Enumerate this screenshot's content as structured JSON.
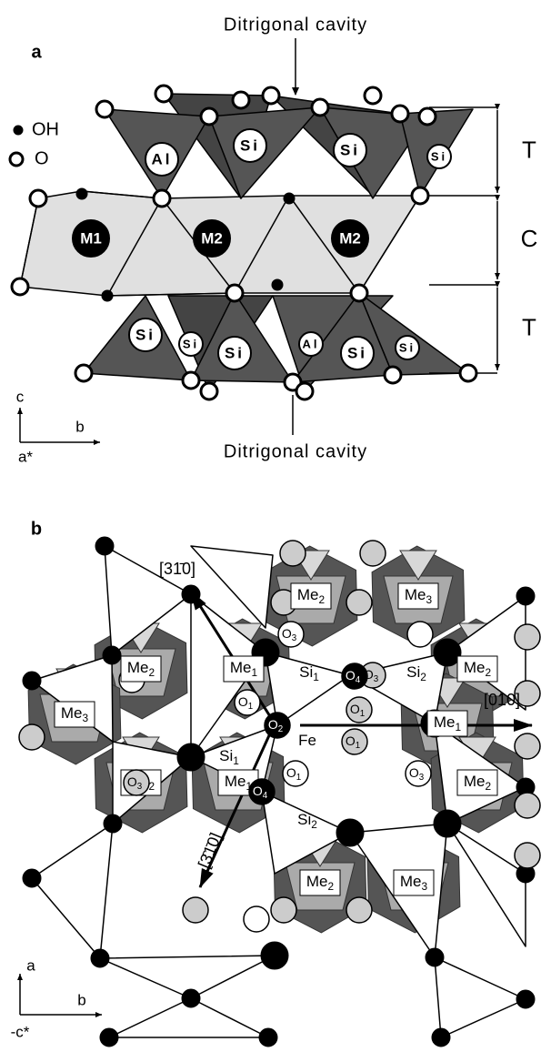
{
  "panel_a": {
    "label": "a",
    "top_caption": "Ditrigonal cavity",
    "bottom_caption": "Ditrigonal cavity",
    "legend": [
      "OH",
      "O"
    ],
    "layers": [
      "T",
      "C",
      "T"
    ],
    "sites": [
      "Al",
      "Si",
      "Si",
      "Si",
      "M1",
      "M2",
      "M2",
      "Si",
      "Si",
      "Si",
      "Al",
      "Si",
      "Si"
    ],
    "axes": {
      "vertical": "c",
      "horizontal": "b",
      "depth": "a*"
    }
  },
  "panel_b": {
    "label": "b",
    "directions": [
      "[31̄0]",
      "[010]",
      "[3̄1̄0]"
    ],
    "sites": [
      {
        "base": "Me",
        "sub": "2"
      },
      {
        "base": "Me",
        "sub": "3"
      },
      {
        "base": "Me",
        "sub": "2"
      },
      {
        "base": "Me",
        "sub": "1"
      },
      {
        "base": "Me",
        "sub": "2"
      },
      {
        "base": "Me",
        "sub": "3"
      },
      {
        "base": "Me",
        "sub": "1"
      },
      {
        "base": "Me",
        "sub": "2"
      },
      {
        "base": "Me",
        "sub": "1"
      },
      {
        "base": "Me",
        "sub": "2"
      },
      {
        "base": "Me",
        "sub": "2"
      },
      {
        "base": "Me",
        "sub": "3"
      },
      {
        "base": "Si",
        "sub": "1"
      },
      {
        "base": "Si",
        "sub": "2"
      },
      {
        "base": "Si",
        "sub": "1"
      },
      {
        "base": "Si",
        "sub": "2"
      },
      {
        "base": "Fe",
        "sub": ""
      }
    ],
    "atoms": [
      {
        "base": "O",
        "sub": "3"
      },
      {
        "base": "O",
        "sub": "3"
      },
      {
        "base": "O",
        "sub": "1"
      },
      {
        "base": "O",
        "sub": "4"
      },
      {
        "base": "O",
        "sub": "1"
      },
      {
        "base": "O",
        "sub": "2"
      },
      {
        "base": "O",
        "sub": "1"
      },
      {
        "base": "O",
        "sub": "1"
      },
      {
        "base": "O",
        "sub": "3"
      },
      {
        "base": "O",
        "sub": "3"
      },
      {
        "base": "O",
        "sub": "4"
      }
    ],
    "axes": {
      "vertical": "a",
      "horizontal": "b",
      "depth": "-c*"
    }
  }
}
